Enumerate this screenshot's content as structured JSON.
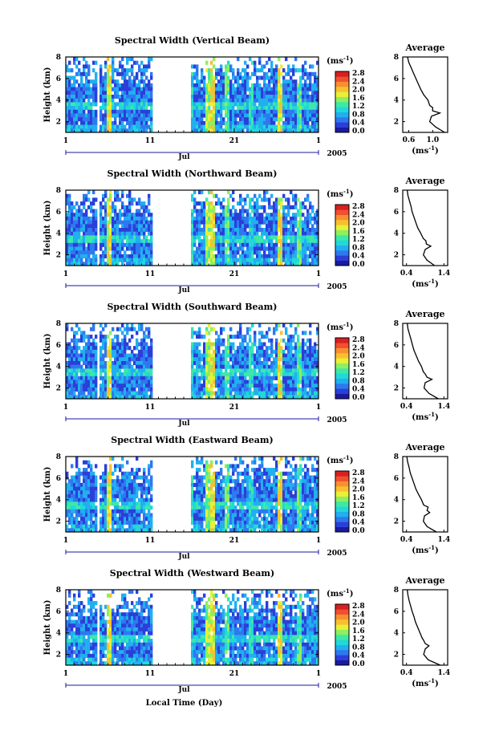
{
  "chart_data": {
    "type": "heatmap",
    "colorscale": [
      "#1a1aa0",
      "#2b3fd8",
      "#2f78ef",
      "#20b0f0",
      "#22d8d8",
      "#3ee8a8",
      "#8cf060",
      "#e8f038",
      "#f8c030",
      "#f89030",
      "#f05030",
      "#d82020"
    ],
    "x_ticks": [
      "1",
      "11",
      "21",
      "1"
    ],
    "x_month": "Jul",
    "x_year": "2005",
    "xlabel": "Local Time (Day)",
    "ylabel": "Height (km)",
    "y_ticks": [
      "2",
      "4",
      "6",
      "8"
    ],
    "ylim": [
      1,
      8
    ],
    "data_gap_days": [
      [
        4.8,
        5.1
      ],
      [
        11.2,
        15.9
      ]
    ],
    "colorbar_unit": "(ms",
    "unit_exponent": "-1",
    "unit_close": ")",
    "avg_title": "Average",
    "avg_height_km": [
      1.0,
      1.5,
      2.0,
      2.5,
      2.8,
      3.0,
      3.3,
      3.5,
      4.0,
      4.5,
      5.0,
      5.5,
      6.0,
      6.5,
      7.0,
      7.5,
      8.0
    ],
    "panels": [
      {
        "title": "Spectral Width (Vertical Beam)",
        "cb_ticks": [
          "2.8",
          "2.4",
          "2.0",
          "1.6",
          "1.2",
          "0.8",
          "0.4",
          "0.0"
        ],
        "avg_xticks": [
          "0.6",
          "1.0"
        ],
        "avg_xlim": [
          0.5,
          1.25
        ],
        "avg_values": [
          1.2,
          1.05,
          0.95,
          0.98,
          1.12,
          1.0,
          1.0,
          0.95,
          0.92,
          0.85,
          0.8,
          0.76,
          0.72,
          0.68,
          0.64,
          0.6,
          0.58
        ]
      },
      {
        "title": "Spectral Width (Northward Beam)",
        "cb_ticks": [
          "2.8",
          "2.4",
          "2.0",
          "1.6",
          "1.2",
          "0.8",
          "0.4",
          "0.0"
        ],
        "avg_xticks": [
          "0.4",
          "1.4"
        ],
        "avg_xlim": [
          0.3,
          1.5
        ],
        "avg_values": [
          1.15,
          0.95,
          0.85,
          0.9,
          1.05,
          0.93,
          0.92,
          0.85,
          0.78,
          0.7,
          0.65,
          0.6,
          0.55,
          0.52,
          0.48,
          0.44,
          0.42
        ]
      },
      {
        "title": "Spectral Width (Southward Beam)",
        "cb_ticks": [
          "2.8",
          "2.4",
          "2.0",
          "1.6",
          "1.2",
          "0.8",
          "0.4",
          "0.0"
        ],
        "avg_xticks": [
          "0.4",
          "1.4"
        ],
        "avg_xlim": [
          0.3,
          1.5
        ],
        "avg_values": [
          1.25,
          1.0,
          0.87,
          0.9,
          1.08,
          0.95,
          0.9,
          0.85,
          0.8,
          0.72,
          0.66,
          0.6,
          0.56,
          0.52,
          0.48,
          0.44,
          0.42
        ]
      },
      {
        "title": "Spectral Width (Eastward Beam)",
        "cb_ticks": [
          "2.8",
          "2.4",
          "2.0",
          "1.6",
          "1.2",
          "0.8",
          "0.4",
          "0.0"
        ],
        "avg_xticks": [
          "0.4",
          "1.4"
        ],
        "avg_xlim": [
          0.3,
          1.5
        ],
        "avg_values": [
          1.2,
          0.95,
          0.85,
          0.88,
          1.02,
          0.95,
          0.98,
          0.86,
          0.8,
          0.72,
          0.65,
          0.6,
          0.55,
          0.5,
          0.47,
          0.43,
          0.41
        ]
      },
      {
        "title": "Spectral Width (Westward Beam)",
        "cb_ticks": [
          "2.8",
          "2.4",
          "2.0",
          "1.6",
          "1.2",
          "0.8",
          "0.4",
          "0.0"
        ],
        "avg_xticks": [
          "0.4",
          "1.4"
        ],
        "avg_xlim": [
          0.3,
          1.5
        ],
        "avg_values": [
          1.3,
          0.98,
          0.86,
          0.9,
          1.0,
          0.9,
          0.86,
          0.82,
          0.76,
          0.7,
          0.64,
          0.6,
          0.55,
          0.51,
          0.47,
          0.44,
          0.42
        ]
      }
    ]
  }
}
